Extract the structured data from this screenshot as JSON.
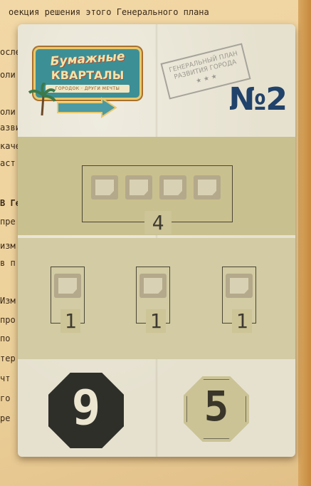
{
  "background_text": [
    "оекция решения этого Генерального плана",
    "осле",
    "оли",
    "оли",
    "азви",
    "каче",
    "аст",
    "В Ге",
    "пре",
    "изм",
    "в п",
    "Изм",
    "про",
    "по",
    "тер",
    "чт",
    "го",
    "ре"
  ],
  "logo": {
    "title": "Бумажные",
    "subtitle": "КВАРТАЛЫ",
    "tagline": "ГОРОДОК · ДРУГИ МЕЧТЫ"
  },
  "stamp": {
    "line1": "ГЕНЕРАЛЬНЫЙ ПЛАН",
    "line2": "РАЗВИТИЯ ГОРОДА",
    "stars": "★★★"
  },
  "card_number": "№2",
  "goal": {
    "group_top_count": "4",
    "group_bottom_counts": [
      "1",
      "1",
      "1"
    ]
  },
  "scores": {
    "first": "9",
    "second": "5"
  },
  "colors": {
    "number_blue": "#21426a",
    "band_olive": "#c9c08f",
    "octagon_dark": "#2f2f2a",
    "octagon_light": "#cbc395"
  }
}
